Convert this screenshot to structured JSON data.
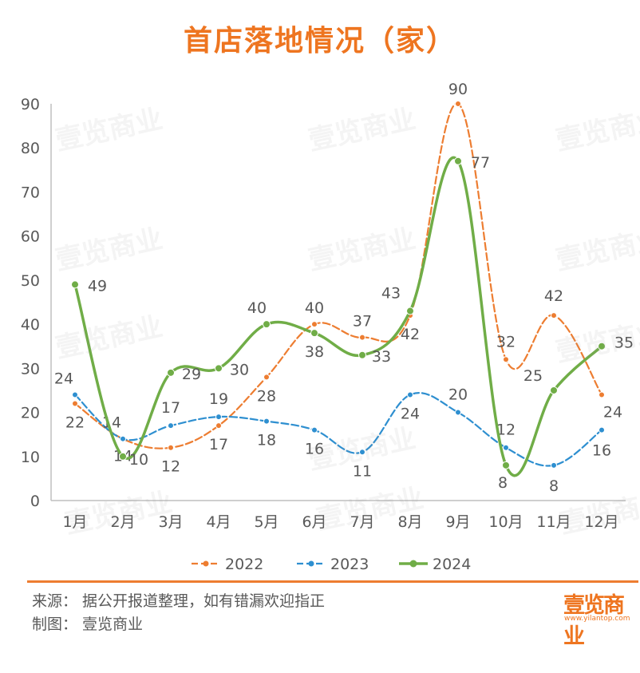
{
  "title": "首店落地情况（家）",
  "colors": {
    "s2022": "#ed7d31",
    "s2023": "#2e8fd0",
    "s2024": "#70ad47",
    "axis": "#bfbfbf",
    "text": "#595959"
  },
  "chart_data": {
    "type": "line",
    "title": "首店落地情况（家）",
    "categories": [
      "1月",
      "2月",
      "3月",
      "4月",
      "5月",
      "6月",
      "7月",
      "8月",
      "9月",
      "10月",
      "11月",
      "12月"
    ],
    "y_ticks": [
      0,
      10,
      20,
      30,
      40,
      50,
      60,
      70,
      80,
      90
    ],
    "ylim": [
      0,
      90
    ],
    "grid": false,
    "legend_position": "bottom",
    "series": [
      {
        "name": "2022",
        "style": "dashed-marker",
        "values": [
          22,
          14,
          12,
          17,
          28,
          40,
          37,
          42,
          90,
          32,
          42,
          24
        ]
      },
      {
        "name": "2023",
        "style": "dashed-marker",
        "values": [
          24,
          14,
          17,
          19,
          18,
          16,
          11,
          24,
          20,
          12,
          8,
          16
        ]
      },
      {
        "name": "2024",
        "style": "solid-marker",
        "values": [
          49,
          10,
          29,
          30,
          40,
          38,
          33,
          43,
          77,
          8,
          25,
          35
        ]
      }
    ]
  },
  "footer": {
    "source": "来源：   据公开报道整理，如有错漏欢迎指正",
    "made_by": "制图：   壹览商业",
    "brand": "壹览商业",
    "brand_url": "www.yilantop.com"
  },
  "watermark": "壹览商业"
}
